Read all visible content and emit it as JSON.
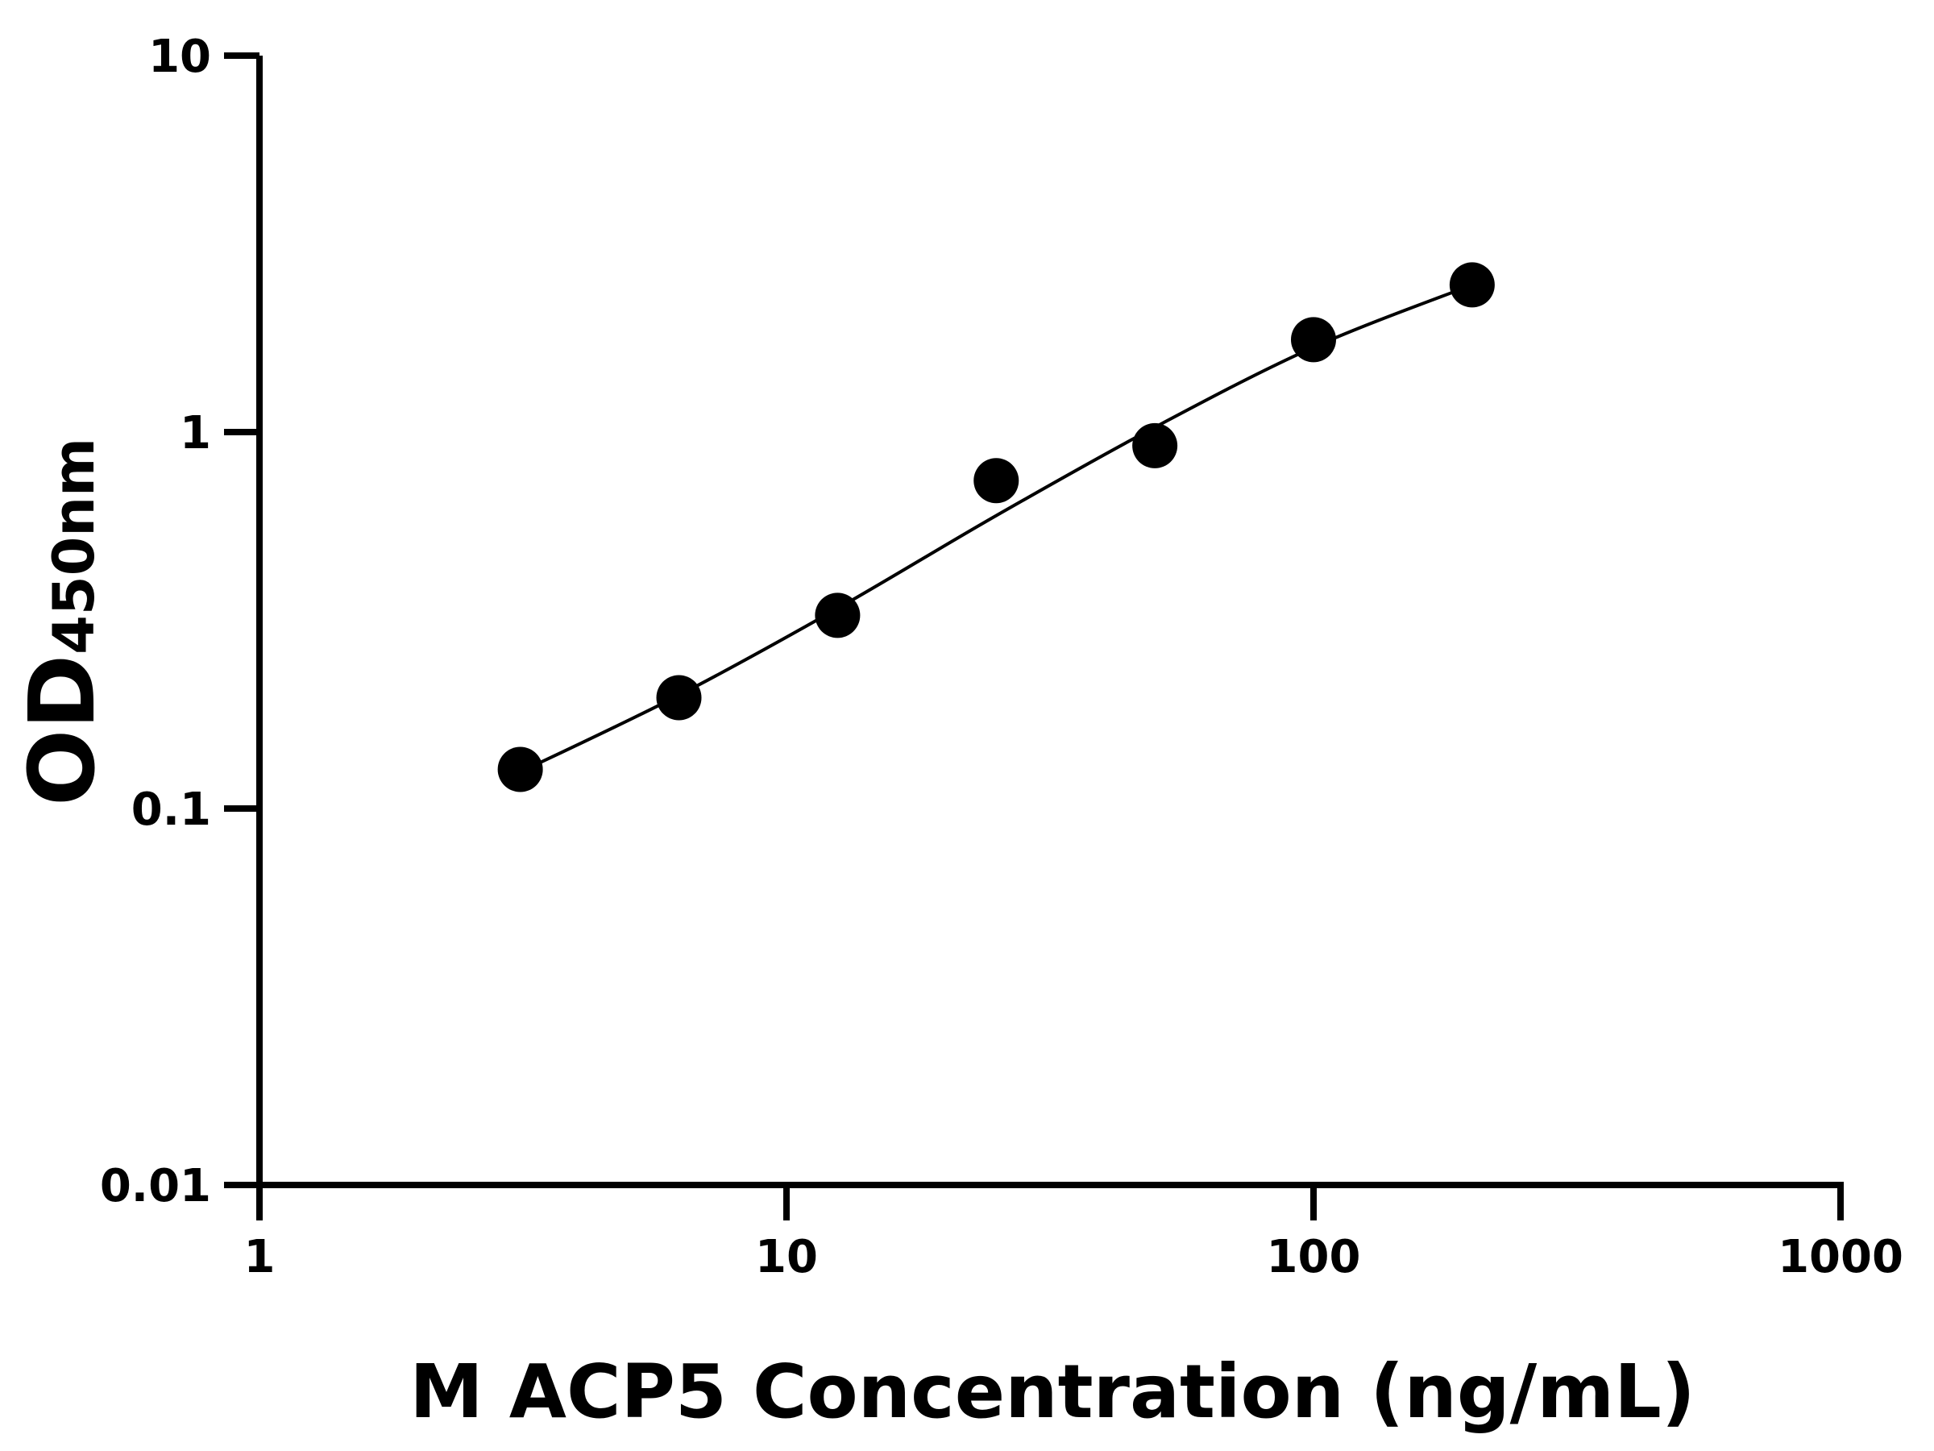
{
  "chart_data": {
    "type": "scatter",
    "title": "",
    "xlabel": "M ACP5 Concentration (ng/mL)",
    "ylabel_main": "OD",
    "ylabel_sub": "450nm",
    "x_scale": "log",
    "y_scale": "log",
    "xlim": [
      1,
      1000
    ],
    "ylim": [
      0.01,
      10
    ],
    "x_ticks": [
      "1",
      "10",
      "100",
      "1000"
    ],
    "y_ticks": [
      "0.01",
      "0.1",
      "1",
      "10"
    ],
    "grid": false,
    "legend": "none",
    "points": {
      "x": [
        3.125,
        6.25,
        12.5,
        25,
        50,
        100,
        200
      ],
      "y": [
        0.127,
        0.197,
        0.326,
        0.743,
        0.92,
        1.76,
        2.46
      ]
    },
    "fit_curve": {
      "x": [
        3.125,
        6.25,
        12.5,
        25,
        50,
        100,
        200
      ],
      "y": [
        0.125,
        0.2,
        0.34,
        0.6,
        1.03,
        1.68,
        2.46
      ]
    },
    "colors": {
      "marker": "#000000",
      "line": "#000000"
    }
  }
}
